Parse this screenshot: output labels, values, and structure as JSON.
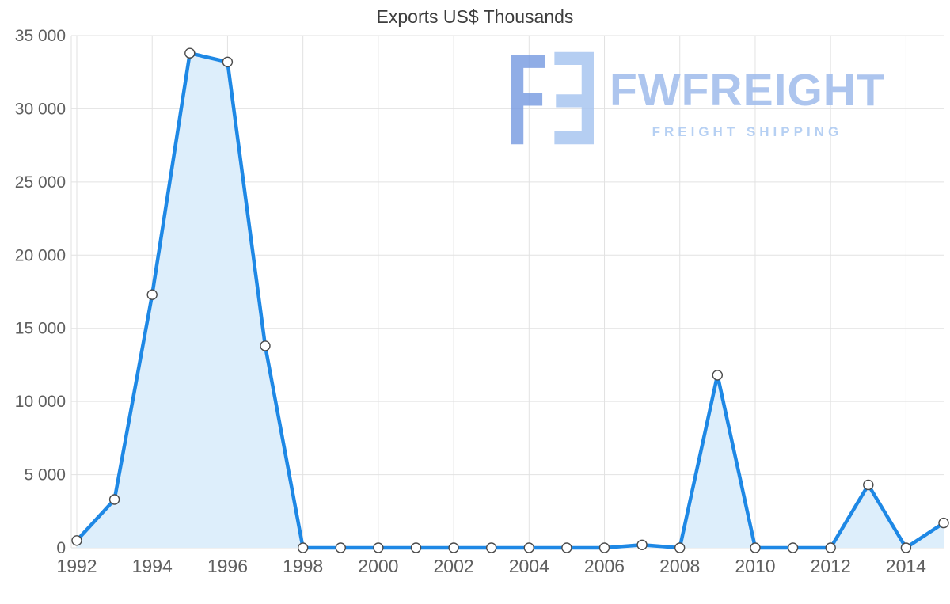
{
  "chart_data": {
    "type": "area",
    "title": "Exports US$ Thousands",
    "xlabel": "",
    "ylabel": "",
    "x": [
      1992,
      1993,
      1994,
      1995,
      1996,
      1997,
      1998,
      1999,
      2000,
      2001,
      2002,
      2003,
      2004,
      2005,
      2006,
      2007,
      2008,
      2009,
      2010,
      2011,
      2012,
      2013,
      2014,
      2015
    ],
    "values": [
      500,
      3300,
      17300,
      33800,
      33200,
      13800,
      0,
      0,
      0,
      0,
      0,
      0,
      0,
      0,
      0,
      200,
      0,
      11800,
      0,
      0,
      0,
      4300,
      0,
      1700
    ],
    "series_name": "Exports US$ Thousands",
    "xlim": [
      1992,
      2015
    ],
    "ylim": [
      0,
      35000
    ],
    "grid": true,
    "legend": "none",
    "x_ticks": {
      "values": [
        1992,
        1994,
        1996,
        1998,
        2000,
        2002,
        2004,
        2006,
        2008,
        2010,
        2012,
        2014
      ],
      "labels": [
        "1992",
        "1994",
        "1996",
        "1998",
        "2000",
        "2002",
        "2004",
        "2006",
        "2008",
        "2010",
        "2012",
        "2014"
      ]
    },
    "y_ticks": {
      "values": [
        0,
        5000,
        10000,
        15000,
        20000,
        25000,
        30000,
        35000
      ],
      "labels": [
        "0",
        "5 000",
        "10 000",
        "15 000",
        "20 000",
        "25 000",
        "30 000",
        "35 000"
      ]
    },
    "colors": {
      "line": "#1e88e5",
      "fill": "#ddeefb",
      "marker_fill": "#ffffff",
      "marker_stroke": "#4a4a4a",
      "grid": "#e2e2e2",
      "axis_text": "#5f5f5f",
      "title": "#3d3d3d"
    }
  },
  "watermark": {
    "brand": "FWFREIGHT",
    "tagline": "FREIGHT SHIPPING",
    "colors": {
      "logo_dark": "#7d9fe2",
      "logo_light": "#a9c6f0",
      "text": "#9fbcec"
    }
  }
}
